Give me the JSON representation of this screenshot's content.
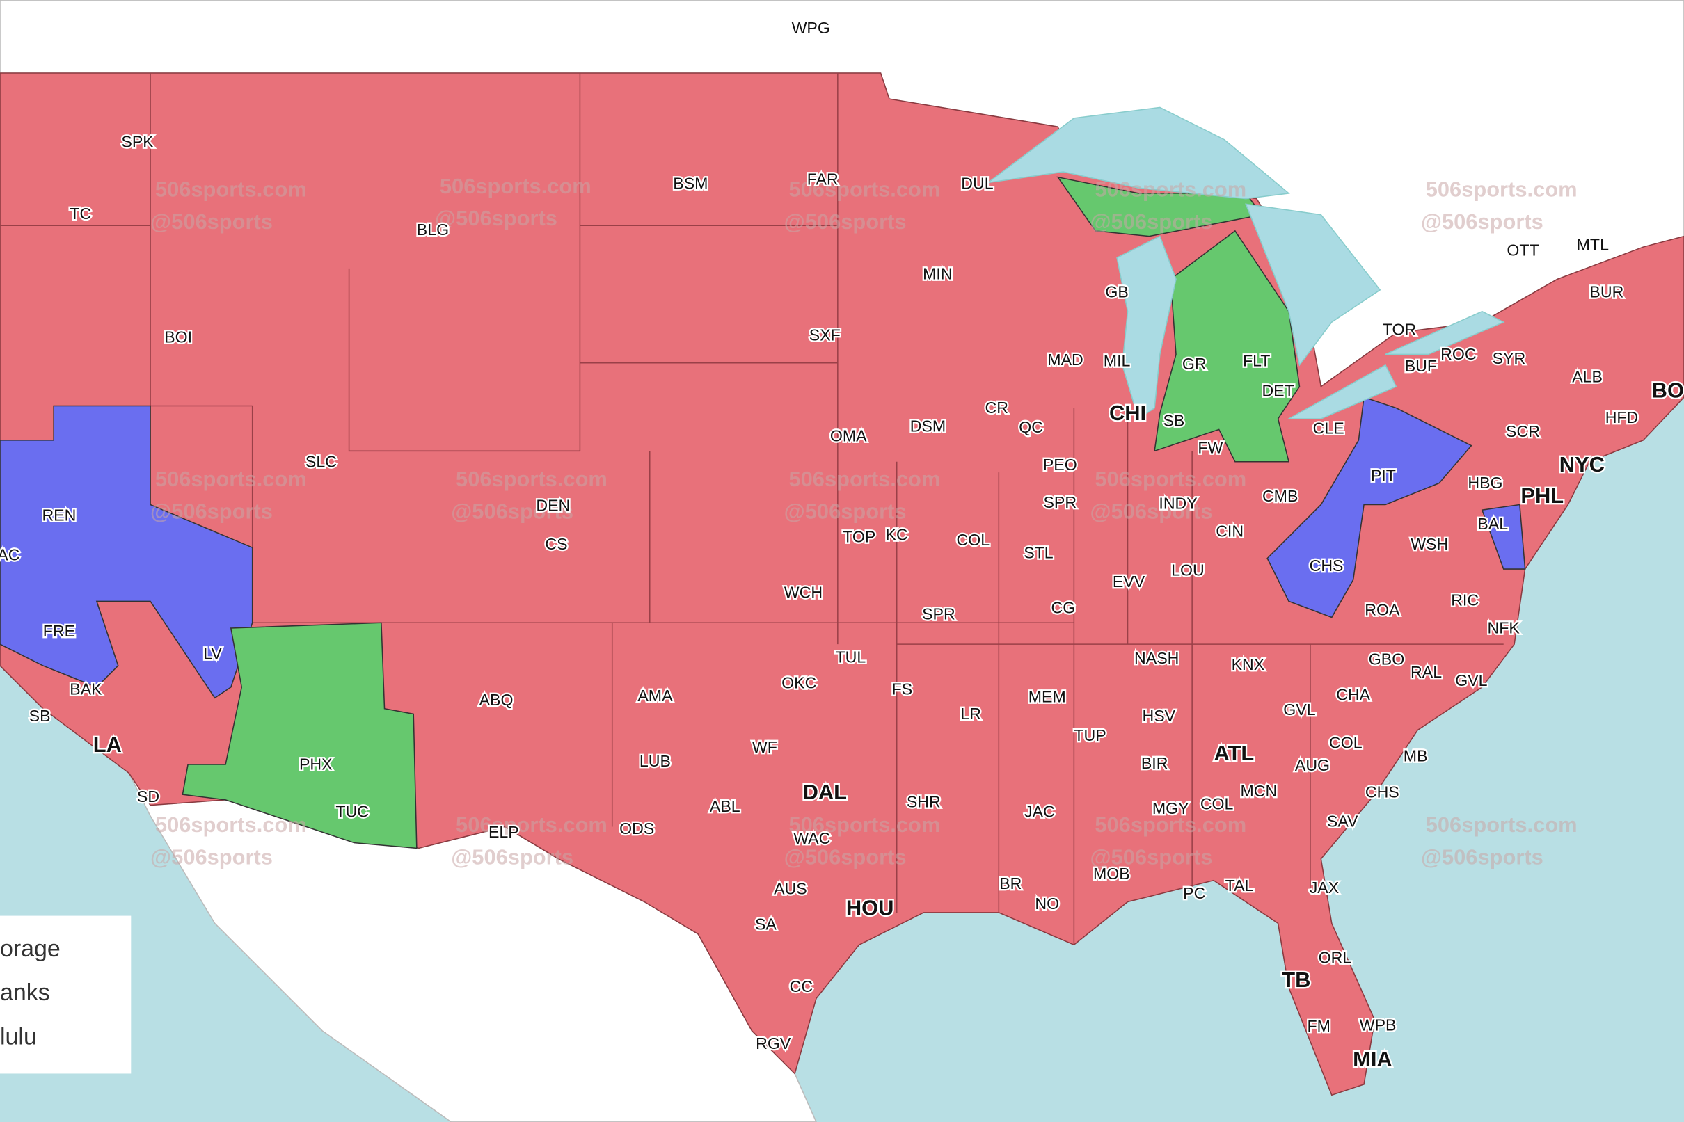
{
  "map": {
    "markets": [
      "WPG",
      "SPK",
      "TC",
      "BLG",
      "BSM",
      "FAR",
      "DUL",
      "MIN",
      "GB",
      "BOI",
      "SXF",
      "MAD",
      "MIL",
      "GR",
      "FLT",
      "DET",
      "TOR",
      "OTT",
      "MTL",
      "BUR",
      "ROC",
      "BUF",
      "SYR",
      "ALB",
      "BO",
      "HFD",
      "SCR",
      "NYC",
      "PHL",
      "HBG",
      "PIT",
      "CLE",
      "CMB",
      "CIN",
      "INDY",
      "FW",
      "SB",
      "CHI",
      "QC",
      "CR",
      "DSM",
      "OMA",
      "PEO",
      "SPR",
      "STL",
      "COL",
      "KC",
      "TOP",
      "DEN",
      "CS",
      "SLC",
      "REN",
      "AC",
      "FRE",
      "LV",
      "BAK",
      "SB",
      "LA",
      "SD",
      "PHX",
      "TUC",
      "ABQ",
      "ELP",
      "AMA",
      "LUB",
      "ODS",
      "ABL",
      "WF",
      "OKC",
      "TUL",
      "FS",
      "WCH",
      "SPR",
      "LR",
      "MEM",
      "TUP",
      "HSV",
      "NASH",
      "KNX",
      "LOU",
      "EVV",
      "CG",
      "CHS",
      "ROA",
      "RIC",
      "WSH",
      "BAL",
      "NFK",
      "GBO",
      "RAL",
      "GVL",
      "CHA",
      "GVL",
      "COL",
      "AUG",
      "MB",
      "CHS",
      "SAV",
      "ATL",
      "BIR",
      "MGY",
      "COL",
      "MCN",
      "JAC",
      "MOB",
      "PC",
      "TAL",
      "JAX",
      "ORL",
      "TB",
      "WPB",
      "FM",
      "MIA",
      "NO",
      "BR",
      "SHR",
      "DAL",
      "WAC",
      "AUS",
      "SA",
      "HOU",
      "CC",
      "RGV"
    ],
    "watermark": {
      "site": "506sports.com",
      "handle": "@506sports"
    }
  },
  "legend": {
    "items": [
      "orage",
      "anks",
      "lulu"
    ]
  }
}
